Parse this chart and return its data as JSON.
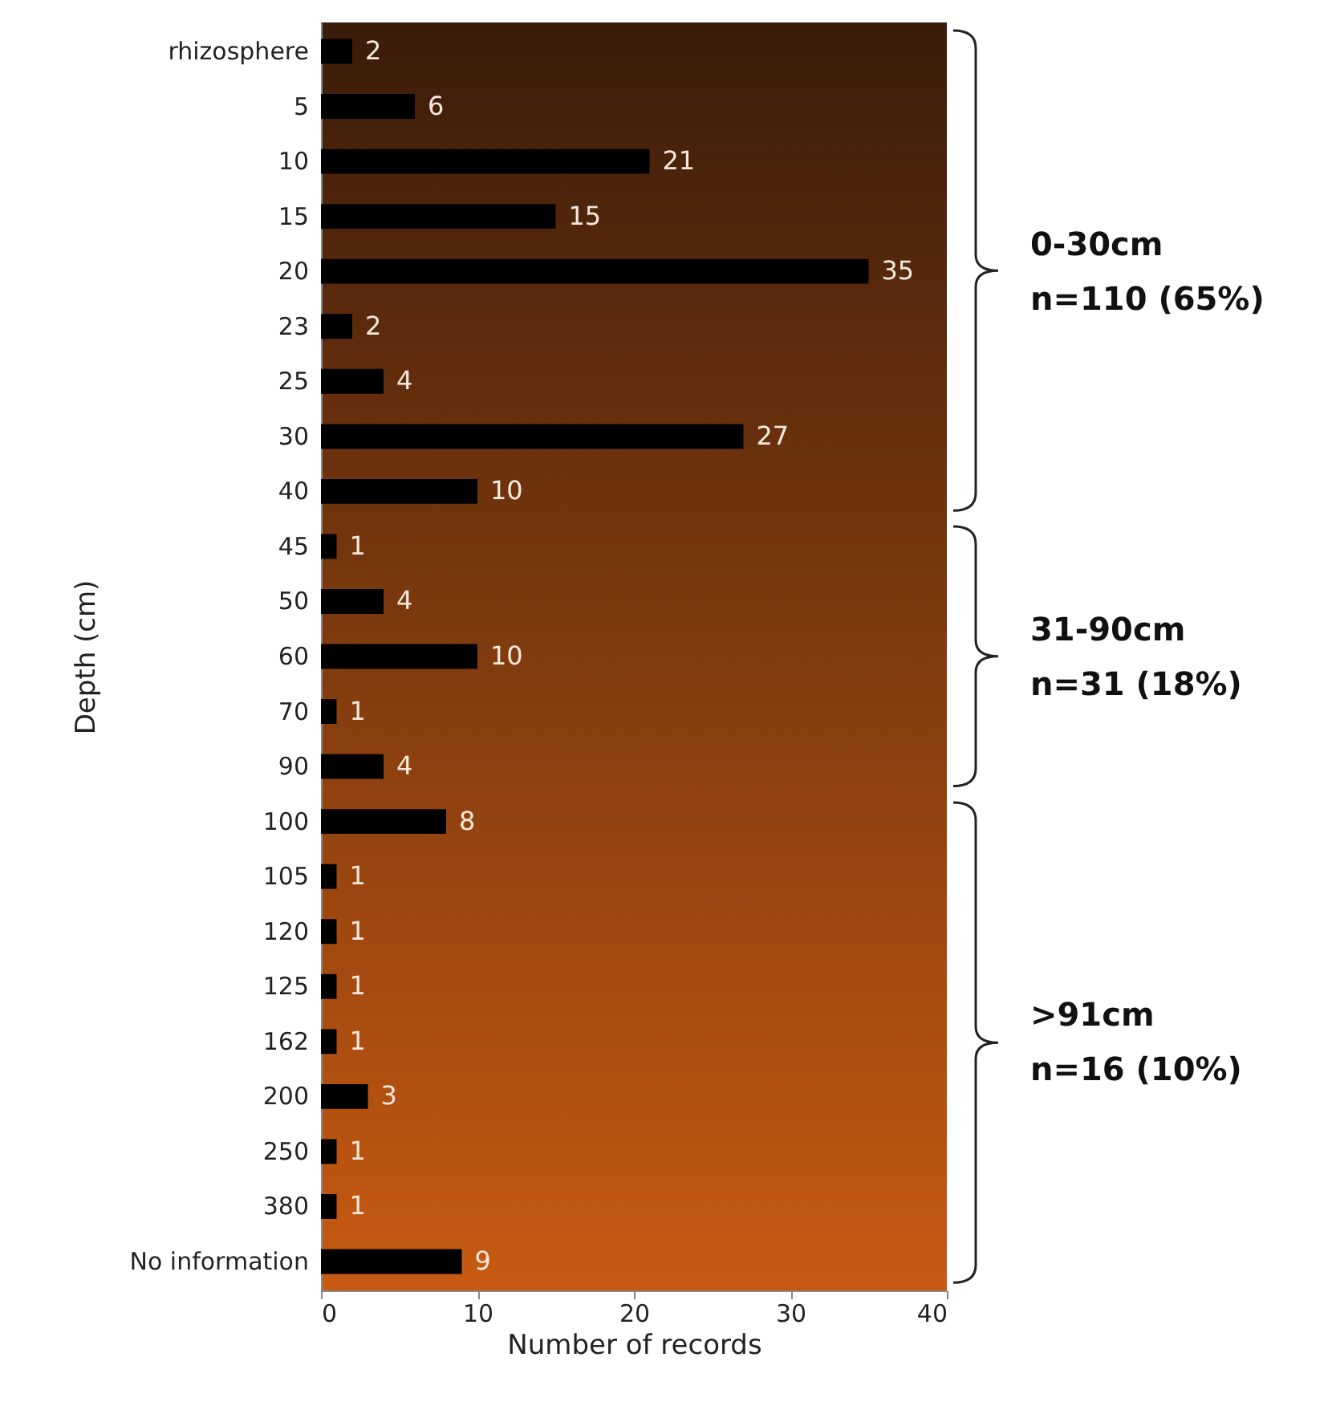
{
  "chart_data": {
    "type": "bar",
    "orientation": "horizontal",
    "xlabel": "Number of records",
    "ylabel": "Depth (cm)",
    "categories": [
      "rhizosphere",
      "5",
      "10",
      "15",
      "20",
      "23",
      "25",
      "30",
      "40",
      "45",
      "50",
      "60",
      "70",
      "90",
      "100",
      "105",
      "120",
      "125",
      "162",
      "200",
      "250",
      "380",
      "No information"
    ],
    "values": [
      2,
      6,
      21,
      15,
      35,
      2,
      4,
      27,
      10,
      1,
      4,
      10,
      1,
      4,
      8,
      1,
      1,
      1,
      1,
      3,
      1,
      1,
      9
    ],
    "color": "#000000",
    "xlim": [
      0,
      40
    ],
    "xticks": [
      0,
      10,
      20,
      30,
      40
    ],
    "data_labels": true,
    "annotations": [
      "0-30cm\nn=110 (65%)",
      "31-90cm\nn=31 (18%)",
      ">91cm\nn=16 (10%)"
    ]
  }
}
